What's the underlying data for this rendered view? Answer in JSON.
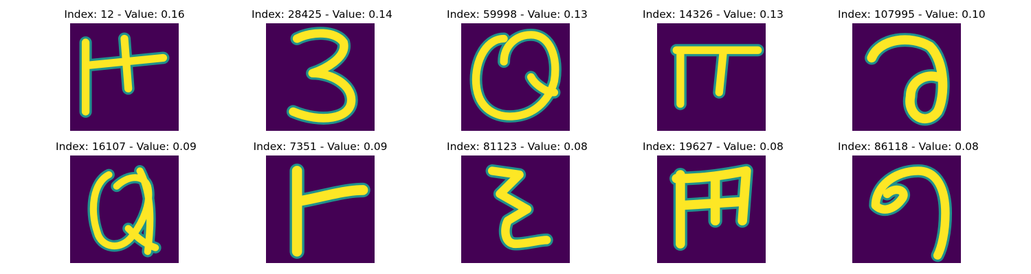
{
  "figure": {
    "panels": [
      {
        "title": "Index: 12 - Value: 0.16",
        "glyph": "handwritten-letter"
      },
      {
        "title": "Index: 28425 - Value: 0.14",
        "glyph": "handwritten-three"
      },
      {
        "title": "Index: 59998 - Value: 0.13",
        "glyph": "handwritten-letter"
      },
      {
        "title": "Index: 14326 - Value: 0.13",
        "glyph": "handwritten-letter"
      },
      {
        "title": "Index: 107995 - Value: 0.10",
        "glyph": "handwritten-letter"
      },
      {
        "title": "Index: 16107 - Value: 0.09",
        "glyph": "handwritten-letter"
      },
      {
        "title": "Index: 7351 - Value: 0.09",
        "glyph": "handwritten-letter"
      },
      {
        "title": "Index: 81123 - Value: 0.08",
        "glyph": "handwritten-letter"
      },
      {
        "title": "Index: 19627 - Value: 0.08",
        "glyph": "handwritten-letter"
      },
      {
        "title": "Index: 86118 - Value: 0.08",
        "glyph": "handwritten-letter"
      }
    ],
    "colors": {
      "background": "#440154",
      "stroke": "#fde725",
      "edge": "#21918c"
    }
  }
}
